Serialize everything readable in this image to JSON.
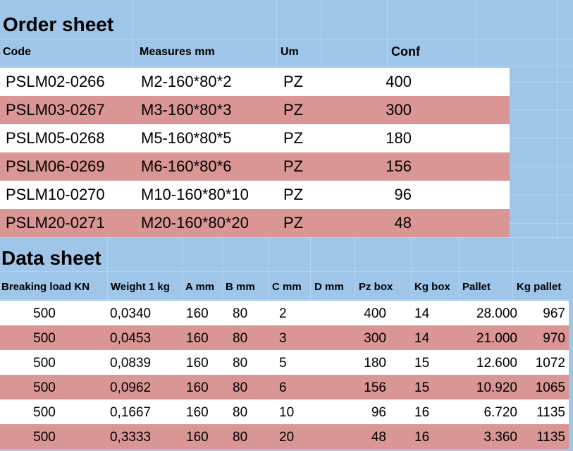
{
  "order_sheet": {
    "title": "Order sheet",
    "headers": [
      "Code",
      "Measures mm",
      "Um",
      "Conf"
    ],
    "rows": [
      [
        "PSLM02-0266",
        "M2-160*80*2",
        "PZ",
        "400"
      ],
      [
        "PSLM03-0267",
        "M3-160*80*3",
        "PZ",
        "300"
      ],
      [
        "PSLM05-0268",
        "M5-160*80*5",
        "PZ",
        "180"
      ],
      [
        "PSLM06-0269",
        "M6-160*80*6",
        "PZ",
        "156"
      ],
      [
        "PSLM10-0270",
        "M10-160*80*10",
        "PZ",
        "96"
      ],
      [
        "PSLM20-0271",
        "M20-160*80*20",
        "PZ",
        "48"
      ]
    ]
  },
  "data_sheet": {
    "title": "Data sheet",
    "headers": [
      "Breaking load KN",
      "Weight 1 kg",
      "A mm",
      "B mm",
      "C mm",
      "D mm",
      "Pz box",
      "Kg box",
      "Pallet",
      "Kg pallet"
    ],
    "rows": [
      [
        "500",
        "0,0340",
        "160",
        "80",
        "2",
        "",
        "400",
        "14",
        "28.000",
        "967"
      ],
      [
        "500",
        "0,0453",
        "160",
        "80",
        "3",
        "",
        "300",
        "14",
        "21.000",
        "970"
      ],
      [
        "500",
        "0,0839",
        "160",
        "80",
        "5",
        "",
        "180",
        "15",
        "12.600",
        "1072"
      ],
      [
        "500",
        "0,0962",
        "160",
        "80",
        "6",
        "",
        "156",
        "15",
        "10.920",
        "1065"
      ],
      [
        "500",
        "0,1667",
        "160",
        "80",
        "10",
        "",
        "96",
        "16",
        "6.720",
        "1135"
      ],
      [
        "500",
        "0,3333",
        "160",
        "80",
        "20",
        "",
        "48",
        "16",
        "3.360",
        "1135"
      ]
    ]
  },
  "colors": {
    "background": "#9fc5e8",
    "row_white": "#ffffff",
    "row_alt": "#da9694"
  }
}
